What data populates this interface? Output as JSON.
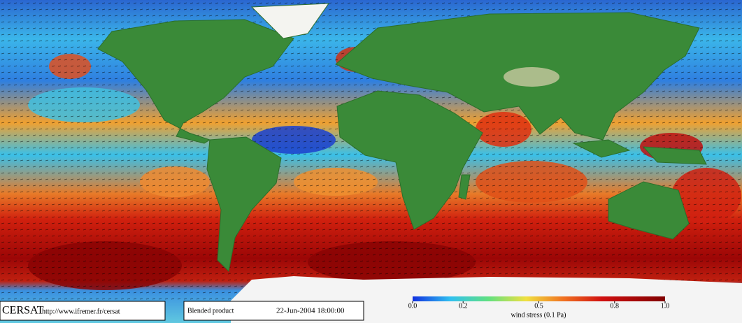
{
  "footer": {
    "logo": "CERSAT",
    "url": "http://www.ifremer.fr/cersat",
    "product": "Blended product",
    "date": "22-Jun-2004 18:00:00"
  },
  "colorbar": {
    "label": "wind stress (0.1 Pa)",
    "lim": [
      0,
      1
    ],
    "ticks": [
      {
        "value": 0,
        "label": "0.0"
      },
      0.2,
      0.5,
      0.8,
      {
        "value": 1,
        "label": "1.0"
      }
    ]
  }
}
